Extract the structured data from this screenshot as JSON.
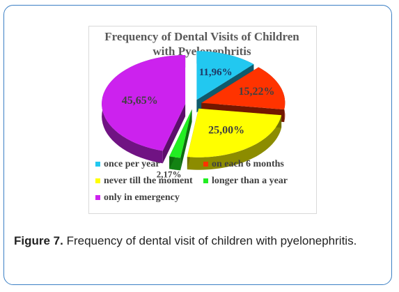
{
  "chart_data": {
    "type": "pie",
    "title": "Frequency of Dental Visits of Children with Pyelonephritis",
    "categories": [
      "once per year",
      "on each 6 months",
      "never till the moment",
      "longer than a year",
      "only in emergency"
    ],
    "values": [
      11.96,
      15.22,
      25.0,
      2.17,
      45.65
    ],
    "value_labels": [
      "11,96%",
      "15,22%",
      "25,00%",
      "2,17%",
      "45,65%"
    ],
    "colors": [
      "#22c8f0",
      "#ff3300",
      "#ffff00",
      "#22ee22",
      "#cc22ee"
    ],
    "legend_position": "bottom"
  },
  "caption": {
    "prefix": "Figure 7.",
    "text": " Frequency of dental visit of children with pyelonephritis."
  }
}
